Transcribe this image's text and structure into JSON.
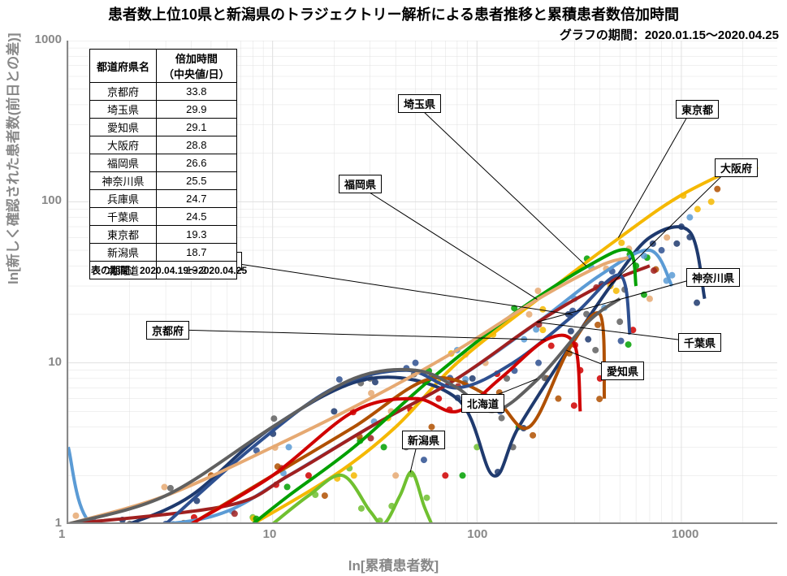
{
  "title": "患者数上位10県と新潟県のトラジェクトリー解析による患者推移と累積患者数倍加時間",
  "title_fontsize": 18,
  "subtitle": "グラフの期間：2020.01.15～2020.04.25",
  "subtitle_fontsize": 15,
  "x_axis_label": "ln[累積患者数]",
  "y_axis_label": "ln[新しく確認された患者数(前日との差)]",
  "axis_label_fontsize": 17,
  "axis_label_color": "#888888",
  "x_ticks": [
    1,
    10,
    100,
    1000
  ],
  "y_ticks": [
    1,
    10,
    100,
    1000
  ],
  "x_range": [
    1,
    3000
  ],
  "y_range": [
    1,
    1000
  ],
  "scale": "log",
  "background_color": "#ffffff",
  "grid_color": "#e0e0e0",
  "axis_color": "#888888",
  "table": {
    "headers": [
      "都道府県名",
      "倍加時間\n（中央値/日）"
    ],
    "rows": [
      [
        "京都府",
        "33.8"
      ],
      [
        "埼玉県",
        "29.9"
      ],
      [
        "愛知県",
        "29.1"
      ],
      [
        "大阪府",
        "28.8"
      ],
      [
        "福岡県",
        "26.6"
      ],
      [
        "神奈川県",
        "25.5"
      ],
      [
        "兵庫県",
        "24.7"
      ],
      [
        "千葉県",
        "24.5"
      ],
      [
        "東京都",
        "19.3"
      ],
      [
        "新潟県",
        "18.7"
      ],
      [
        "北海道",
        "13.2"
      ]
    ],
    "caption": "表の期間：2020.04.19～2020.04.25"
  },
  "series": [
    {
      "name": "東京都",
      "color": "#f5b800",
      "callout_x": 832,
      "callout_y": 123,
      "trend": [
        [
          8,
          1
        ],
        [
          20,
          2
        ],
        [
          40,
          4
        ],
        [
          80,
          10
        ],
        [
          200,
          25
        ],
        [
          500,
          60
        ],
        [
          1000,
          110
        ],
        [
          2200,
          180
        ]
      ]
    },
    {
      "name": "大阪府",
      "color": "#1f3a6e",
      "callout_x": 880,
      "callout_y": 195,
      "trend": [
        [
          2,
          1
        ],
        [
          4,
          1.5
        ],
        [
          10,
          4
        ],
        [
          30,
          8
        ],
        [
          80,
          6
        ],
        [
          120,
          2
        ],
        [
          160,
          4
        ],
        [
          300,
          14
        ],
        [
          450,
          30
        ],
        [
          700,
          60
        ],
        [
          1100,
          65
        ],
        [
          1300,
          25
        ]
      ]
    },
    {
      "name": "神奈川県",
      "color": "#5b9bd5",
      "callout_x": 845,
      "callout_y": 330,
      "trend": [
        [
          1,
          3
        ],
        [
          1.3,
          1
        ],
        [
          3,
          1
        ],
        [
          6,
          1.2
        ],
        [
          12,
          2
        ],
        [
          30,
          4
        ],
        [
          80,
          8
        ],
        [
          200,
          18
        ],
        [
          400,
          35
        ],
        [
          700,
          50
        ],
        [
          900,
          30
        ]
      ]
    },
    {
      "name": "千葉県",
      "color": "#a02020",
      "callout_x": 835,
      "callout_y": 410,
      "trend": [
        [
          1,
          1
        ],
        [
          6,
          1.3
        ],
        [
          12,
          2
        ],
        [
          30,
          4
        ],
        [
          80,
          8
        ],
        [
          200,
          18
        ],
        [
          400,
          30
        ],
        [
          700,
          40
        ]
      ]
    },
    {
      "name": "埼玉県",
      "color": "#00a000",
      "callout_x": 490,
      "callout_y": 116,
      "trend": [
        [
          8,
          1
        ],
        [
          12,
          1.5
        ],
        [
          25,
          3
        ],
        [
          60,
          8
        ],
        [
          150,
          20
        ],
        [
          350,
          40
        ],
        [
          550,
          50
        ],
        [
          600,
          30
        ]
      ]
    },
    {
      "name": "愛知県",
      "color": "#b05000",
      "callout_x": 740,
      "callout_y": 445,
      "trend": [
        [
          4,
          1
        ],
        [
          10,
          2
        ],
        [
          25,
          4
        ],
        [
          60,
          8
        ],
        [
          120,
          6
        ],
        [
          180,
          4
        ],
        [
          280,
          12
        ],
        [
          400,
          20
        ],
        [
          420,
          6
        ]
      ]
    },
    {
      "name": "兵庫県",
      "color": "#2e5090",
      "callout_x": 245,
      "callout_y": 310,
      "trend": [
        [
          3,
          1
        ],
        [
          8,
          3
        ],
        [
          20,
          7
        ],
        [
          45,
          9
        ],
        [
          80,
          7
        ],
        [
          150,
          10
        ],
        [
          300,
          20
        ],
        [
          500,
          35
        ],
        [
          560,
          15
        ]
      ]
    },
    {
      "name": "福岡県",
      "color": "#e6a972",
      "callout_x": 417,
      "callout_y": 215,
      "trend": [
        [
          1,
          1
        ],
        [
          3,
          1.5
        ],
        [
          10,
          3
        ],
        [
          30,
          6
        ],
        [
          80,
          12
        ],
        [
          200,
          25
        ],
        [
          400,
          40
        ],
        [
          550,
          45
        ]
      ]
    },
    {
      "name": "京都府",
      "color": "#d00000",
      "callout_x": 180,
      "callout_y": 395,
      "trend": [
        [
          4,
          1
        ],
        [
          10,
          2
        ],
        [
          25,
          5
        ],
        [
          50,
          6
        ],
        [
          80,
          5
        ],
        [
          130,
          8
        ],
        [
          220,
          14
        ],
        [
          300,
          13
        ],
        [
          320,
          5
        ]
      ]
    },
    {
      "name": "北海道",
      "color": "#606060",
      "callout_x": 568,
      "callout_y": 485,
      "trend": [
        [
          1,
          1
        ],
        [
          3,
          1.5
        ],
        [
          10,
          4
        ],
        [
          25,
          8
        ],
        [
          50,
          9
        ],
        [
          80,
          7
        ],
        [
          120,
          5
        ],
        [
          200,
          8
        ],
        [
          350,
          18
        ],
        [
          500,
          25
        ]
      ]
    },
    {
      "name": "新潟県",
      "color": "#70c030",
      "callout_x": 495,
      "callout_y": 530,
      "trend": [
        [
          10,
          1
        ],
        [
          15,
          1.5
        ],
        [
          22,
          2
        ],
        [
          30,
          1.2
        ],
        [
          35,
          1
        ],
        [
          42,
          1.5
        ],
        [
          48,
          2.1
        ],
        [
          55,
          1.3
        ],
        [
          60,
          1
        ]
      ]
    }
  ],
  "scatter_extra": [
    {
      "x": 2,
      "y": 1,
      "c": "#606060"
    },
    {
      "x": 3,
      "y": 1,
      "c": "#2e5090"
    },
    {
      "x": 5,
      "y": 2,
      "c": "#b05000"
    },
    {
      "x": 8,
      "y": 1.1,
      "c": "#70c030"
    },
    {
      "x": 12,
      "y": 3,
      "c": "#5b9bd5"
    },
    {
      "x": 15,
      "y": 2,
      "c": "#d00000"
    },
    {
      "x": 20,
      "y": 5,
      "c": "#1f3a6e"
    },
    {
      "x": 25,
      "y": 2,
      "c": "#f5b800"
    },
    {
      "x": 30,
      "y": 8,
      "c": "#606060"
    },
    {
      "x": 35,
      "y": 3,
      "c": "#00a000"
    },
    {
      "x": 40,
      "y": 2,
      "c": "#e6a972"
    },
    {
      "x": 50,
      "y": 10,
      "c": "#2e5090"
    },
    {
      "x": 60,
      "y": 4,
      "c": "#b05000"
    },
    {
      "x": 70,
      "y": 2,
      "c": "#d00000"
    },
    {
      "x": 80,
      "y": 12,
      "c": "#5b9bd5"
    },
    {
      "x": 90,
      "y": 6,
      "c": "#1f3a6e"
    },
    {
      "x": 100,
      "y": 3,
      "c": "#70c030"
    },
    {
      "x": 120,
      "y": 15,
      "c": "#f5b800"
    },
    {
      "x": 140,
      "y": 8,
      "c": "#606060"
    },
    {
      "x": 160,
      "y": 4,
      "c": "#00a000"
    },
    {
      "x": 180,
      "y": 20,
      "c": "#e6a972"
    },
    {
      "x": 200,
      "y": 10,
      "c": "#2e5090"
    },
    {
      "x": 250,
      "y": 6,
      "c": "#b05000"
    },
    {
      "x": 300,
      "y": 25,
      "c": "#5b9bd5"
    },
    {
      "x": 350,
      "y": 14,
      "c": "#1f3a6e"
    },
    {
      "x": 400,
      "y": 8,
      "c": "#d00000"
    },
    {
      "x": 450,
      "y": 30,
      "c": "#f5b800"
    },
    {
      "x": 500,
      "y": 18,
      "c": "#606060"
    },
    {
      "x": 600,
      "y": 40,
      "c": "#00a000"
    },
    {
      "x": 700,
      "y": 25,
      "c": "#e6a972"
    },
    {
      "x": 800,
      "y": 50,
      "c": "#2e5090"
    },
    {
      "x": 900,
      "y": 35,
      "c": "#5b9bd5"
    },
    {
      "x": 1000,
      "y": 70,
      "c": "#1f3a6e"
    },
    {
      "x": 1200,
      "y": 90,
      "c": "#f5b800"
    },
    {
      "x": 1500,
      "y": 120,
      "c": "#b05000"
    },
    {
      "x": 1800,
      "y": 150,
      "c": "#f5b800"
    },
    {
      "x": 28,
      "y": 8,
      "c": "#1f3a6e"
    },
    {
      "x": 45,
      "y": 3,
      "c": "#606060"
    },
    {
      "x": 65,
      "y": 6,
      "c": "#d00000"
    },
    {
      "x": 85,
      "y": 2,
      "c": "#00a000"
    },
    {
      "x": 110,
      "y": 10,
      "c": "#e6a972"
    },
    {
      "x": 130,
      "y": 5,
      "c": "#2e5090"
    },
    {
      "x": 170,
      "y": 14,
      "c": "#5b9bd5"
    },
    {
      "x": 220,
      "y": 8,
      "c": "#b05000"
    },
    {
      "x": 280,
      "y": 20,
      "c": "#1f3a6e"
    },
    {
      "x": 380,
      "y": 12,
      "c": "#606060"
    },
    {
      "x": 480,
      "y": 28,
      "c": "#f5b800"
    },
    {
      "x": 580,
      "y": 16,
      "c": "#d00000"
    },
    {
      "x": 680,
      "y": 45,
      "c": "#00a000"
    },
    {
      "x": 850,
      "y": 60,
      "c": "#e6a972"
    },
    {
      "x": 1100,
      "y": 80,
      "c": "#5b9bd5"
    },
    {
      "x": 18,
      "y": 1.5,
      "c": "#b05000"
    },
    {
      "x": 38,
      "y": 5,
      "c": "#e6a972"
    },
    {
      "x": 55,
      "y": 2.5,
      "c": "#2e5090"
    },
    {
      "x": 95,
      "y": 8,
      "c": "#1f3a6e"
    },
    {
      "x": 150,
      "y": 3,
      "c": "#606060"
    },
    {
      "x": 210,
      "y": 16,
      "c": "#f5b800"
    },
    {
      "x": 320,
      "y": 9,
      "c": "#d00000"
    },
    {
      "x": 420,
      "y": 22,
      "c": "#5b9bd5"
    },
    {
      "x": 550,
      "y": 13,
      "c": "#00a000"
    },
    {
      "x": 750,
      "y": 38,
      "c": "#b05000"
    },
    {
      "x": 950,
      "y": 55,
      "c": "#1f3a6e"
    },
    {
      "x": 1400,
      "y": 100,
      "c": "#f5b800"
    }
  ],
  "line_width": 4,
  "marker_size": 4
}
